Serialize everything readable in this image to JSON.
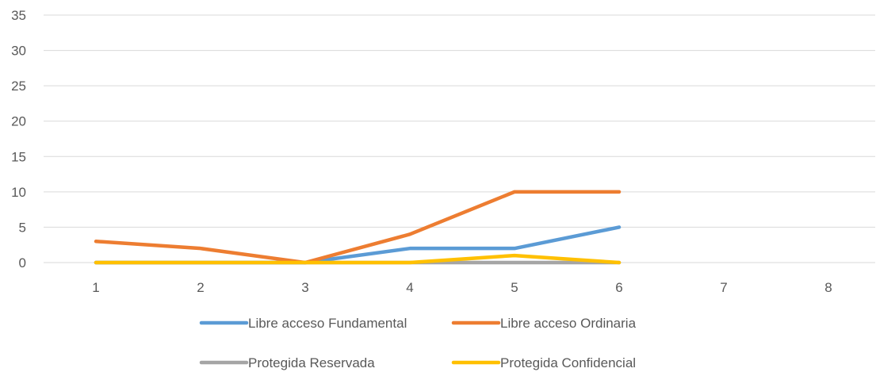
{
  "chart_data": {
    "type": "line",
    "title": "",
    "xlabel": "",
    "ylabel": "",
    "x": [
      1,
      2,
      3,
      4,
      5,
      6,
      7,
      8
    ],
    "ylim": [
      0,
      35
    ],
    "yticks": [
      0,
      5,
      10,
      15,
      20,
      25,
      30,
      35
    ],
    "grid": "horizontal",
    "legend_position": "bottom",
    "series": [
      {
        "name": "Libre acceso Fundamental",
        "color": "#5B9BD5",
        "values": [
          0,
          0,
          0,
          2,
          2,
          5,
          null,
          null
        ]
      },
      {
        "name": "Libre acceso Ordinaria",
        "color": "#ED7D31",
        "values": [
          3,
          2,
          0,
          4,
          10,
          10,
          null,
          null
        ]
      },
      {
        "name": "Protegida Reservada",
        "color": "#A5A5A5",
        "values": [
          0,
          0,
          0,
          0,
          0,
          0,
          null,
          null
        ]
      },
      {
        "name": "Protegida Confidencial",
        "color": "#FFC000",
        "values": [
          0,
          0,
          0,
          0,
          1,
          0,
          null,
          null
        ]
      }
    ]
  }
}
